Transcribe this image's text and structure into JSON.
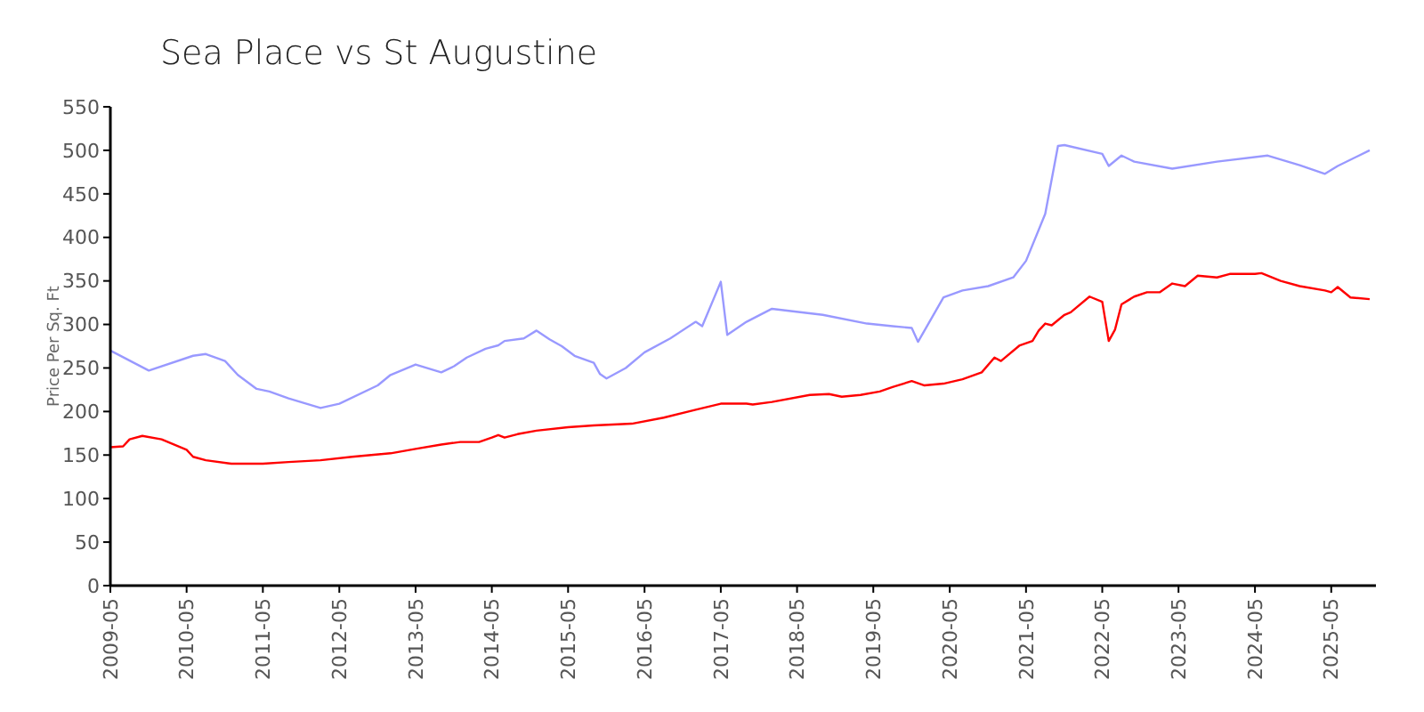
{
  "chart_data": {
    "type": "line",
    "title": "Sea Place vs St Augustine",
    "ylabel": "Price Per Sq. Ft",
    "xlim": [
      "2009-05",
      "2025-12"
    ],
    "xticks": [
      "2009-05",
      "2010-05",
      "2011-05",
      "2012-05",
      "2013-05",
      "2014-05",
      "2015-05",
      "2016-05",
      "2017-05",
      "2018-05",
      "2019-05",
      "2020-05",
      "2021-05",
      "2022-05",
      "2023-05",
      "2024-05",
      "2025-05"
    ],
    "ylim": [
      0,
      550
    ],
    "yticks": [
      0,
      50,
      100,
      150,
      200,
      250,
      300,
      350,
      400,
      450,
      500,
      550
    ],
    "grid": false,
    "marker": "none",
    "line_style": "solid",
    "series": [
      {
        "color": "#9999ff",
        "x": [
          "2009-05",
          "2009-11",
          "2010-06",
          "2010-08",
          "2010-11",
          "2011-01",
          "2011-04",
          "2011-06",
          "2011-09",
          "2012-02",
          "2012-05",
          "2012-11",
          "2013-01",
          "2013-05",
          "2013-09",
          "2013-11",
          "2014-01",
          "2014-04",
          "2014-06",
          "2014-07",
          "2014-10",
          "2014-12",
          "2015-02",
          "2015-04",
          "2015-06",
          "2015-09",
          "2015-10",
          "2015-11",
          "2016-02",
          "2016-05",
          "2016-09",
          "2017-01",
          "2017-02",
          "2017-05",
          "2017-06",
          "2017-09",
          "2018-01",
          "2018-09",
          "2019-04",
          "2019-08",
          "2019-11",
          "2019-12",
          "2020-04",
          "2020-07",
          "2020-11",
          "2021-03",
          "2021-05",
          "2021-08",
          "2021-10",
          "2021-11",
          "2022-05",
          "2022-06",
          "2022-08",
          "2022-10",
          "2023-04",
          "2023-11",
          "2024-07",
          "2024-12",
          "2025-04",
          "2025-06",
          "2025-11"
        ],
        "values": [
          270,
          247,
          264,
          266,
          258,
          242,
          226,
          223,
          215,
          204,
          209,
          230,
          242,
          254,
          245,
          252,
          262,
          272,
          276,
          281,
          284,
          293,
          283,
          275,
          264,
          256,
          243,
          238,
          250,
          268,
          284,
          303,
          298,
          349,
          288,
          303,
          318,
          311,
          301,
          298,
          296,
          280,
          331,
          339,
          344,
          354,
          373,
          427,
          505,
          506,
          496,
          482,
          494,
          487,
          479,
          487,
          494,
          483,
          473,
          482,
          500
        ]
      },
      {
        "color": "#ff0000",
        "x": [
          "2009-05",
          "2009-07",
          "2009-08",
          "2009-10",
          "2010-01",
          "2010-05",
          "2010-06",
          "2010-08",
          "2010-12",
          "2011-05",
          "2011-09",
          "2012-02",
          "2012-07",
          "2013-01",
          "2013-05",
          "2013-09",
          "2013-12",
          "2014-03",
          "2014-05",
          "2014-06",
          "2014-07",
          "2014-09",
          "2014-12",
          "2015-05",
          "2015-09",
          "2016-03",
          "2016-08",
          "2017-01",
          "2017-05",
          "2017-09",
          "2017-10",
          "2018-01",
          "2018-07",
          "2018-10",
          "2018-12",
          "2019-03",
          "2019-06",
          "2019-08",
          "2019-11",
          "2020-01",
          "2020-04",
          "2020-07",
          "2020-10",
          "2020-12",
          "2021-01",
          "2021-04",
          "2021-06",
          "2021-07",
          "2021-08",
          "2021-09",
          "2021-11",
          "2021-12",
          "2022-03",
          "2022-05",
          "2022-06",
          "2022-07",
          "2022-08",
          "2022-10",
          "2022-12",
          "2023-02",
          "2023-04",
          "2023-06",
          "2023-08",
          "2023-11",
          "2024-01",
          "2024-05",
          "2024-06",
          "2024-09",
          "2024-12",
          "2025-04",
          "2025-05",
          "2025-06",
          "2025-08",
          "2025-11"
        ],
        "values": [
          159,
          160,
          168,
          172,
          168,
          156,
          148,
          144,
          140,
          140,
          142,
          144,
          148,
          152,
          157,
          162,
          165,
          165,
          170,
          173,
          170,
          174,
          178,
          182,
          184,
          186,
          193,
          202,
          209,
          209,
          208,
          211,
          219,
          220,
          217,
          219,
          223,
          228,
          235,
          230,
          232,
          237,
          245,
          262,
          258,
          276,
          281,
          293,
          301,
          299,
          311,
          314,
          332,
          326,
          281,
          294,
          323,
          332,
          337,
          337,
          347,
          344,
          356,
          354,
          358,
          358,
          359,
          350,
          344,
          339,
          337,
          343,
          331,
          329
        ]
      }
    ]
  }
}
